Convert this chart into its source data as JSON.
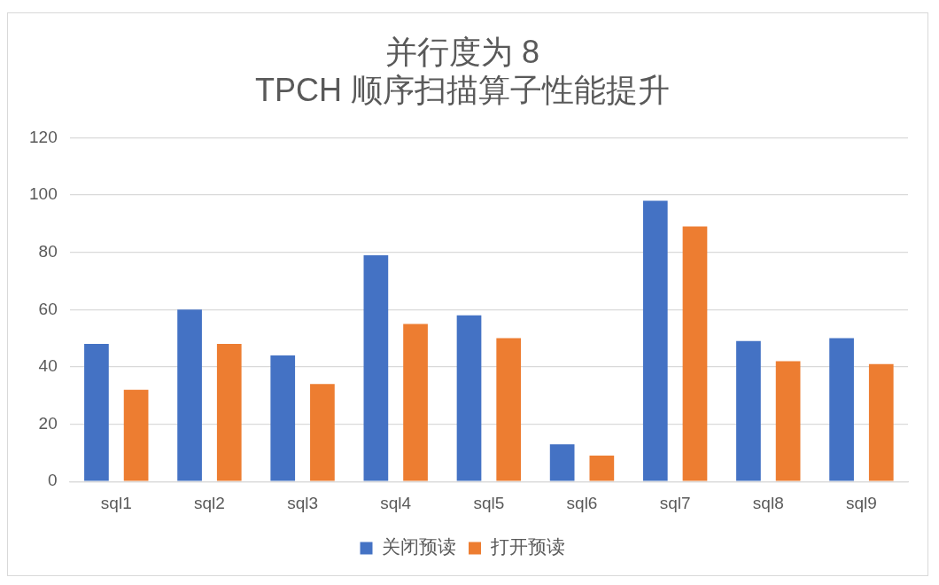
{
  "chart_data": {
    "type": "bar",
    "title": "并行度为 8\nTPCH 顺序扫描算子性能提升",
    "categories": [
      "sql1",
      "sql2",
      "sql3",
      "sql4",
      "sql5",
      "sql6",
      "sql7",
      "sql8",
      "sql9"
    ],
    "series": [
      {
        "name": "关闭预读",
        "color": "#4472c4",
        "values": [
          48,
          60,
          44,
          79,
          58,
          13,
          98,
          49,
          50
        ]
      },
      {
        "name": "打开预读",
        "color": "#ed7d31",
        "values": [
          32,
          48,
          34,
          55,
          50,
          9,
          89,
          42,
          41
        ]
      }
    ],
    "ylim": [
      0,
      120
    ],
    "yticks": [
      0,
      20,
      40,
      60,
      80,
      100,
      120
    ],
    "grid": "y",
    "legend": "bottom"
  }
}
